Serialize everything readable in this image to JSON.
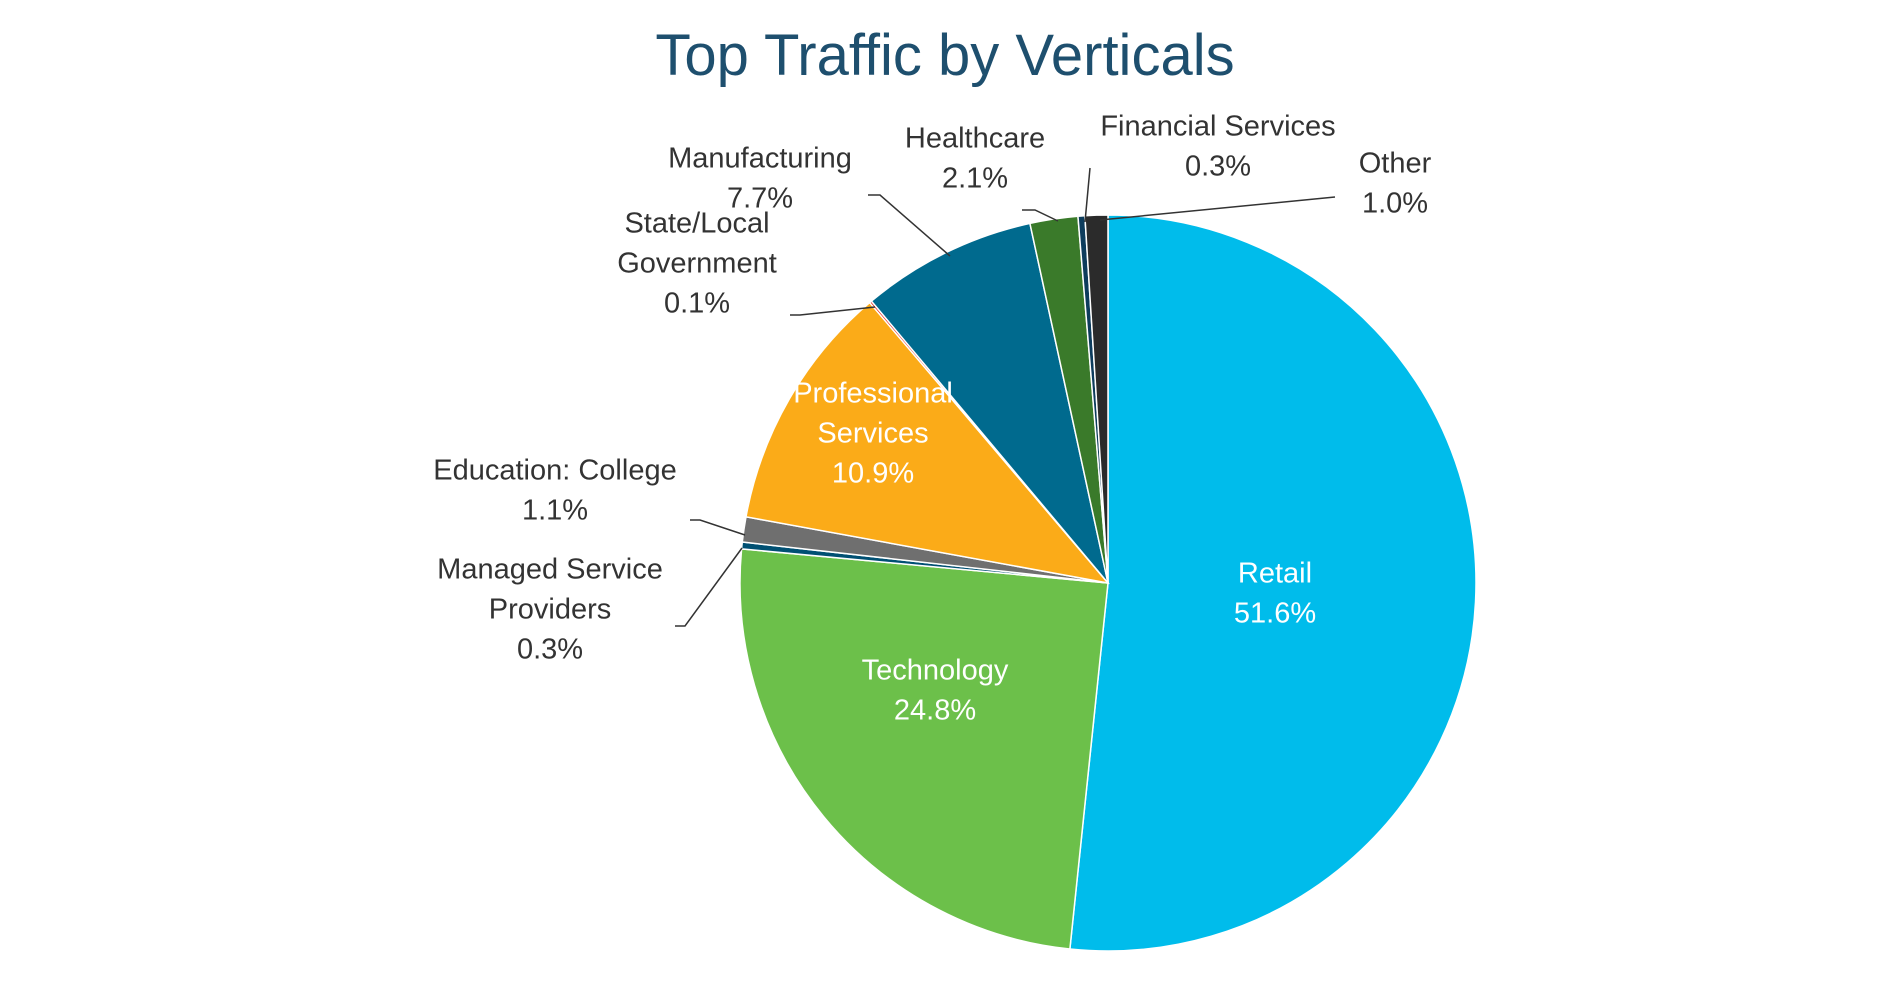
{
  "chart_data": {
    "type": "pie",
    "title": "Top Traffic by Verticals",
    "slices": [
      {
        "label": [
          "Retail"
        ],
        "value": 51.6,
        "value_label": "51.6%",
        "color": "#00bceb"
      },
      {
        "label": [
          "Technology"
        ],
        "value": 24.8,
        "value_label": "24.8%",
        "color": "#6cc04a"
      },
      {
        "label": [
          "Managed Service",
          "Providers"
        ],
        "value": 0.3,
        "value_label": "0.3%",
        "color": "#005073"
      },
      {
        "label": [
          "Education: College"
        ],
        "value": 1.1,
        "value_label": "1.1%",
        "color": "#6f6f6f"
      },
      {
        "label": [
          "Professional",
          "Services"
        ],
        "value": 10.9,
        "value_label": "10.9%",
        "color": "#fbab18"
      },
      {
        "label": [
          "State/Local",
          "Government"
        ],
        "value": 0.1,
        "value_label": "0.1%",
        "color": "#e2231a"
      },
      {
        "label": [
          "Manufacturing"
        ],
        "value": 7.7,
        "value_label": "7.7%",
        "color": "#006a8e"
      },
      {
        "label": [
          "Healthcare"
        ],
        "value": 2.1,
        "value_label": "2.1%",
        "color": "#3a7a2a"
      },
      {
        "label": [
          "Financial Services"
        ],
        "value": 0.3,
        "value_label": "0.3%",
        "color": "#0d3c5c"
      },
      {
        "label": [
          "Other"
        ],
        "value": 1.0,
        "value_label": "1.0%",
        "color": "#2b2b2b"
      }
    ]
  }
}
